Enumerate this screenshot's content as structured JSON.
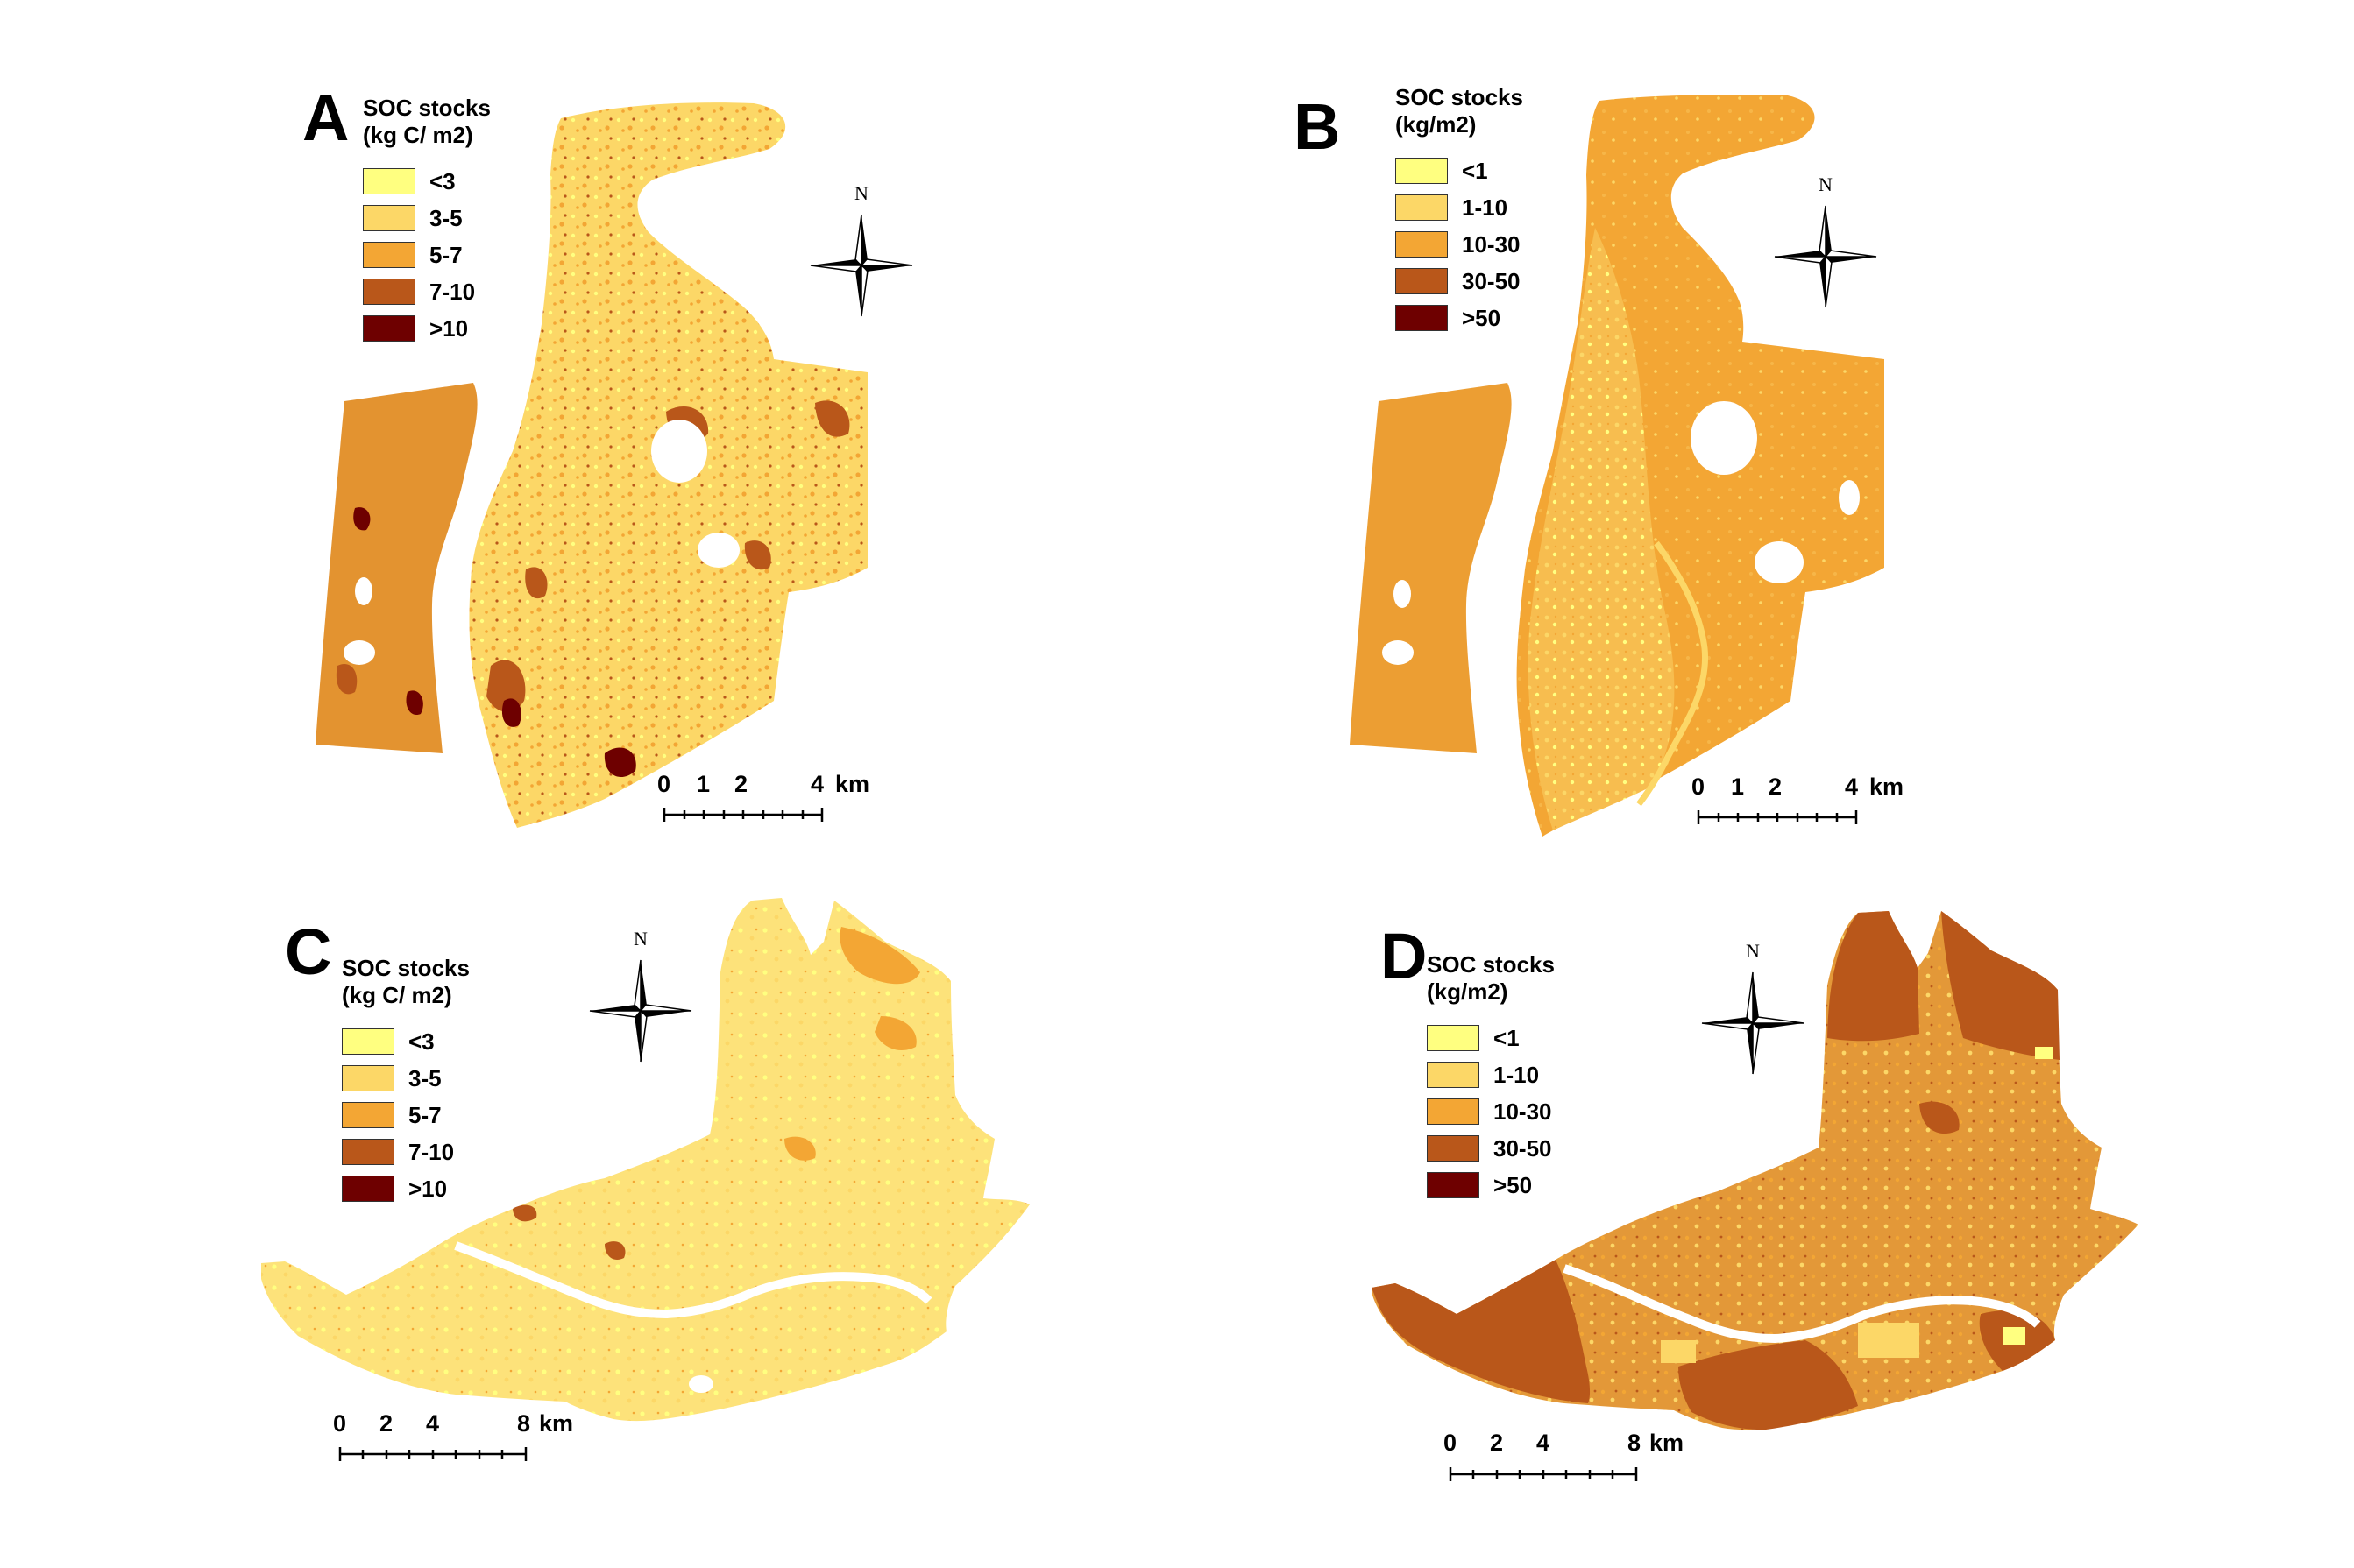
{
  "panels": [
    {
      "letter": "A",
      "legend": {
        "title_line1": "SOC stocks",
        "title_line2": "(kg C/ m2)",
        "classes": [
          {
            "label": "<3",
            "color": "#ffff80"
          },
          {
            "label": "3-5",
            "color": "#fcd767"
          },
          {
            "label": "5-7",
            "color": "#f3a634"
          },
          {
            "label": "7-10",
            "color": "#b9571a"
          },
          {
            "label": ">10",
            "color": "#6e0000"
          }
        ]
      },
      "north_label": "N",
      "scale": {
        "ticks": [
          "0",
          "1",
          "2",
          "4"
        ],
        "unit": "km"
      }
    },
    {
      "letter": "B",
      "legend": {
        "title_line1": "SOC stocks",
        "title_line2": "(kg/m2)",
        "classes": [
          {
            "label": "<1",
            "color": "#ffff80"
          },
          {
            "label": "1-10",
            "color": "#fcd767"
          },
          {
            "label": "10-30",
            "color": "#f3a634"
          },
          {
            "label": "30-50",
            "color": "#b9571a"
          },
          {
            "label": ">50",
            "color": "#6e0000"
          }
        ]
      },
      "north_label": "N",
      "scale": {
        "ticks": [
          "0",
          "1",
          "2",
          "4"
        ],
        "unit": "km"
      }
    },
    {
      "letter": "C",
      "legend": {
        "title_line1": "SOC stocks",
        "title_line2": "(kg C/ m2)",
        "classes": [
          {
            "label": "<3",
            "color": "#ffff80"
          },
          {
            "label": "3-5",
            "color": "#fcd767"
          },
          {
            "label": "5-7",
            "color": "#f3a634"
          },
          {
            "label": "7-10",
            "color": "#b9571a"
          },
          {
            "label": ">10",
            "color": "#6e0000"
          }
        ]
      },
      "north_label": "N",
      "scale": {
        "ticks": [
          "0",
          "2",
          "4",
          "8"
        ],
        "unit": "km"
      }
    },
    {
      "letter": "D",
      "legend": {
        "title_line1": "SOC stocks",
        "title_line2": "(kg/m2)",
        "classes": [
          {
            "label": "<1",
            "color": "#ffff80"
          },
          {
            "label": "1-10",
            "color": "#fcd767"
          },
          {
            "label": "10-30",
            "color": "#f3a634"
          },
          {
            "label": "30-50",
            "color": "#b9571a"
          },
          {
            "label": ">50",
            "color": "#6e0000"
          }
        ]
      },
      "north_label": "N",
      "scale": {
        "ticks": [
          "0",
          "2",
          "4",
          "8"
        ],
        "unit": "km"
      }
    }
  ]
}
